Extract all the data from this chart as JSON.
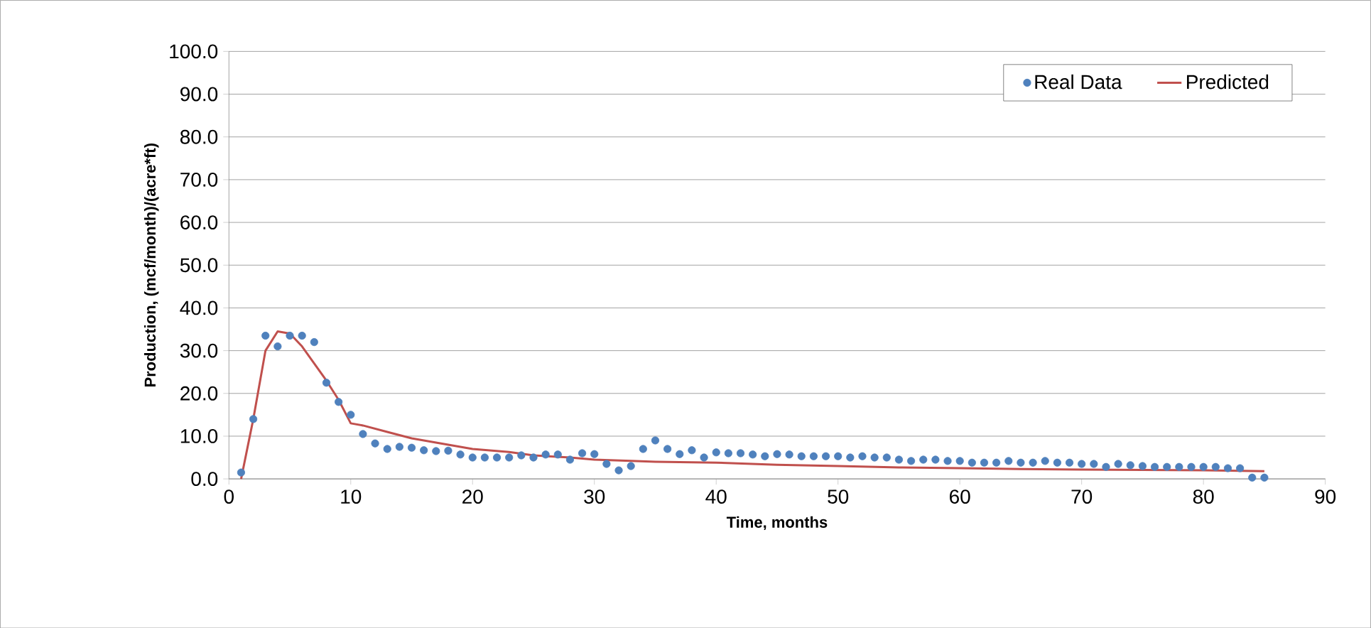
{
  "chart_data": {
    "type": "scatter",
    "xlabel": "Time, months",
    "ylabel": "Production, (mcf/month)/(acre*ft)",
    "xlim": [
      0,
      90
    ],
    "xticks": [
      0,
      10,
      20,
      30,
      40,
      50,
      60,
      70,
      80,
      90
    ],
    "ylim": [
      0,
      100
    ],
    "yticks": [
      {
        "value": 0,
        "label": "0.0"
      },
      {
        "value": 10,
        "label": "10.0"
      },
      {
        "value": 20,
        "label": "20.0"
      },
      {
        "value": 30,
        "label": "30.0"
      },
      {
        "value": 40,
        "label": "40.0"
      },
      {
        "value": 50,
        "label": "50.0"
      },
      {
        "value": 60,
        "label": "60.0"
      },
      {
        "value": 70,
        "label": "70.0"
      },
      {
        "value": 80,
        "label": "80.0"
      },
      {
        "value": 90,
        "label": "90.0"
      },
      {
        "value": 100,
        "label": "100.0"
      }
    ],
    "grid": "y",
    "legend": "top right",
    "series": [
      {
        "name": "Real Data",
        "marker": "circle",
        "color": "#4f81bd",
        "x": [
          1,
          2,
          3,
          4,
          5,
          6,
          7,
          8,
          9,
          10,
          11,
          12,
          13,
          14,
          15,
          16,
          17,
          18,
          19,
          20,
          21,
          22,
          23,
          24,
          25,
          26,
          27,
          28,
          29,
          30,
          31,
          32,
          33,
          34,
          35,
          36,
          37,
          38,
          39,
          40,
          41,
          42,
          43,
          44,
          45,
          46,
          47,
          48,
          49,
          50,
          51,
          52,
          53,
          54,
          55,
          56,
          57,
          58,
          59,
          60,
          61,
          62,
          63,
          64,
          65,
          66,
          67,
          68,
          69,
          70,
          71,
          72,
          73,
          74,
          75,
          76,
          77,
          78,
          79,
          80,
          81,
          82,
          83,
          84,
          85
        ],
        "values": [
          1.5,
          14,
          33.5,
          31,
          33.5,
          33.5,
          32,
          22.5,
          18,
          15,
          10.5,
          8.3,
          7,
          7.5,
          7.3,
          6.7,
          6.5,
          6.6,
          5.7,
          5,
          5,
          5,
          5,
          5.5,
          5,
          5.7,
          5.7,
          4.5,
          6,
          5.8,
          3.5,
          2,
          3,
          7,
          9,
          7,
          5.8,
          6.7,
          5,
          6.2,
          6,
          6,
          5.7,
          5.3,
          5.8,
          5.7,
          5.3,
          5.3,
          5.3,
          5.3,
          5,
          5.3,
          5,
          5,
          4.5,
          4.2,
          4.5,
          4.5,
          4.2,
          4.2,
          3.8,
          3.8,
          3.8,
          4.2,
          3.8,
          3.8,
          4.2,
          3.8,
          3.8,
          3.5,
          3.5,
          2.8,
          3.5,
          3.2,
          3,
          2.8,
          2.8,
          2.8,
          2.8,
          2.8,
          2.8,
          2.5,
          2.5,
          0.3,
          0.3
        ]
      },
      {
        "name": "Predicted",
        "type": "line",
        "marker": "none",
        "line_style": "solid",
        "color": "#c0504d",
        "x": [
          1,
          2,
          3,
          4,
          5,
          6,
          7,
          8,
          9,
          10,
          11,
          13,
          15,
          18,
          20,
          23,
          25,
          28,
          30,
          33,
          35,
          40,
          45,
          50,
          55,
          60,
          65,
          70,
          75,
          80,
          85
        ],
        "values": [
          0,
          14,
          30,
          34.5,
          34,
          31,
          27,
          23,
          18.5,
          13,
          12.5,
          11,
          9.5,
          8,
          7,
          6.3,
          5.5,
          5,
          4.5,
          4.2,
          4,
          3.8,
          3.3,
          3,
          2.7,
          2.5,
          2.3,
          2.2,
          2.1,
          2,
          1.8
        ]
      }
    ]
  }
}
